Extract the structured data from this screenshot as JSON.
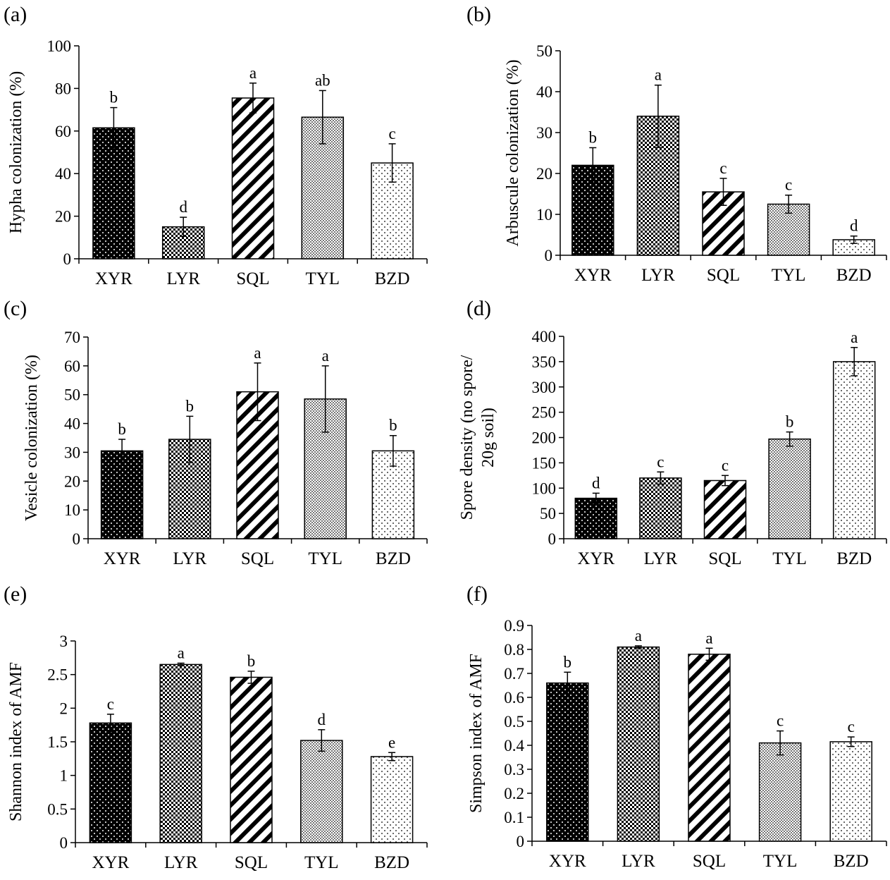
{
  "figure": {
    "colors": {
      "black": "#000000",
      "white": "#ffffff"
    },
    "categories": [
      "XYR",
      "LYR",
      "SQL",
      "TYL",
      "BZD"
    ],
    "patterns": [
      "dense-dots-on-black",
      "checker",
      "diagonal-stripes",
      "fine-checker",
      "sparse-dots"
    ]
  },
  "chart_data": [
    {
      "type": "bar",
      "panel_label": "(a)",
      "ylabel": "Hypha colonization (%)",
      "categories": [
        "XYR",
        "LYR",
        "SQL",
        "TYL",
        "BZD"
      ],
      "values": [
        61.5,
        15,
        75.5,
        66.5,
        45
      ],
      "errors": [
        9.5,
        4.5,
        7,
        12.5,
        9
      ],
      "letters": [
        "b",
        "d",
        "a",
        "ab",
        "c"
      ],
      "ylim": [
        0,
        100
      ],
      "yticks": [
        0,
        20,
        40,
        60,
        80,
        100
      ],
      "ytick_labels": [
        "0",
        "20",
        "40",
        "60",
        "80",
        "100"
      ]
    },
    {
      "type": "bar",
      "panel_label": "(b)",
      "ylabel": "Arbuscule colonization (%)",
      "categories": [
        "XYR",
        "LYR",
        "SQL",
        "TYL",
        "BZD"
      ],
      "values": [
        22,
        34,
        15.5,
        12.5,
        3.8
      ],
      "errors": [
        4.3,
        7.6,
        3.3,
        2.2,
        0.9
      ],
      "letters": [
        "b",
        "a",
        "c",
        "c",
        "d"
      ],
      "ylim": [
        0,
        50
      ],
      "yticks": [
        0,
        10,
        20,
        30,
        40,
        50
      ],
      "ytick_labels": [
        "0",
        "10",
        "20",
        "30",
        "40",
        "50"
      ]
    },
    {
      "type": "bar",
      "panel_label": "(c)",
      "ylabel": "Vesicle colonization (%)",
      "categories": [
        "XYR",
        "LYR",
        "SQL",
        "TYL",
        "BZD"
      ],
      "values": [
        30.5,
        34.5,
        51,
        48.5,
        30.5
      ],
      "errors": [
        4,
        8,
        10,
        11.5,
        5.3
      ],
      "letters": [
        "b",
        "b",
        "a",
        "a",
        "b"
      ],
      "ylim": [
        0,
        70
      ],
      "yticks": [
        0,
        10,
        20,
        30,
        40,
        50,
        60,
        70
      ],
      "ytick_labels": [
        "0",
        "10",
        "20",
        "30",
        "40",
        "50",
        "60",
        "70"
      ]
    },
    {
      "type": "bar",
      "panel_label": "(d)",
      "ylabel": "Spore density (no spore/ 20g soil)",
      "ylabel_lines": [
        "Spore density (no spore/",
        "20g soil)"
      ],
      "categories": [
        "XYR",
        "LYR",
        "SQL",
        "TYL",
        "BZD"
      ],
      "values": [
        80,
        120,
        115,
        197,
        350
      ],
      "errors": [
        10,
        12,
        10,
        14,
        28
      ],
      "letters": [
        "d",
        "c",
        "c",
        "b",
        "a"
      ],
      "ylim": [
        0,
        400
      ],
      "yticks": [
        0,
        50,
        100,
        150,
        200,
        250,
        300,
        350,
        400
      ],
      "ytick_labels": [
        "0",
        "50",
        "100",
        "150",
        "200",
        "250",
        "300",
        "350",
        "400"
      ]
    },
    {
      "type": "bar",
      "panel_label": "(e)",
      "ylabel": "Shannon index of AMF",
      "categories": [
        "XYR",
        "LYR",
        "SQL",
        "TYL",
        "BZD"
      ],
      "values": [
        1.78,
        2.65,
        2.46,
        1.52,
        1.28
      ],
      "errors": [
        0.13,
        0.02,
        0.09,
        0.16,
        0.06
      ],
      "letters": [
        "c",
        "a",
        "b",
        "d",
        "e"
      ],
      "ylim": [
        0,
        3
      ],
      "yticks": [
        0,
        0.5,
        1,
        1.5,
        2,
        2.5,
        3
      ],
      "ytick_labels": [
        "0",
        "0.5",
        "1",
        "1.5",
        "2",
        "2.5",
        "3"
      ]
    },
    {
      "type": "bar",
      "panel_label": "(f)",
      "ylabel": "Simpson index of AMF",
      "categories": [
        "XYR",
        "LYR",
        "SQL",
        "TYL",
        "BZD"
      ],
      "values": [
        0.66,
        0.81,
        0.78,
        0.41,
        0.415
      ],
      "errors": [
        0.045,
        0.005,
        0.025,
        0.05,
        0.02
      ],
      "letters": [
        "b",
        "a",
        "a",
        "c",
        "c"
      ],
      "ylim": [
        0,
        0.9
      ],
      "yticks": [
        0,
        0.1,
        0.2,
        0.3,
        0.4,
        0.5,
        0.6,
        0.7,
        0.8,
        0.9
      ],
      "ytick_labels": [
        "0",
        "0.1",
        "0.2",
        "0.3",
        "0.4",
        "0.5",
        "0.6",
        "0.7",
        "0.8",
        "0.9"
      ]
    }
  ]
}
